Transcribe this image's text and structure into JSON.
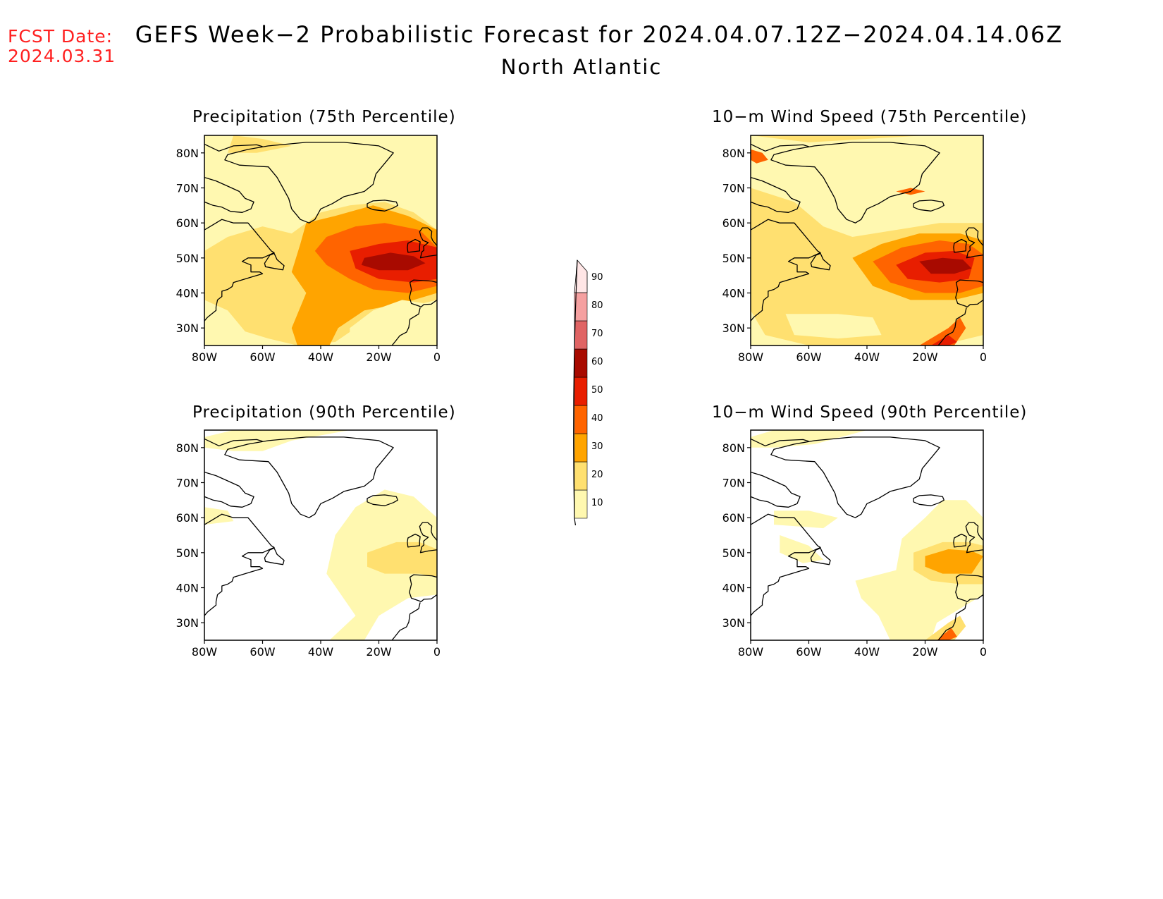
{
  "header": {
    "fcst_label": "FCST Date:",
    "fcst_date": "2024.03.31",
    "title": "GEFS Week−2 Probabilistic Forecast for 2024.04.07.12Z−2024.04.14.06Z",
    "region": "North Atlantic"
  },
  "axes": {
    "lat_ticks": [
      "80N",
      "70N",
      "60N",
      "50N",
      "40N",
      "30N"
    ],
    "lon_ticks": [
      "80W",
      "60W",
      "40W",
      "20W",
      "0"
    ]
  },
  "panels": [
    {
      "title": "Precipitation (75th Percentile)"
    },
    {
      "title": "10−m Wind Speed (75th Percentile)"
    },
    {
      "title": "Precipitation (90th Percentile)"
    },
    {
      "title": "10−m Wind Speed (90th Percentile)"
    }
  ],
  "colorbar": {
    "levels": [
      "10",
      "20",
      "30",
      "40",
      "50",
      "60",
      "70",
      "80",
      "90"
    ],
    "colors": [
      "#fff8b0",
      "#ffe070",
      "#ffa400",
      "#ff6400",
      "#e81e00",
      "#a80a00",
      "#e06464",
      "#f5a0a0",
      "#ffe6e6"
    ]
  },
  "map_extent": {
    "lon_range": [
      -80,
      0
    ],
    "lat_range": [
      25,
      85
    ]
  }
}
